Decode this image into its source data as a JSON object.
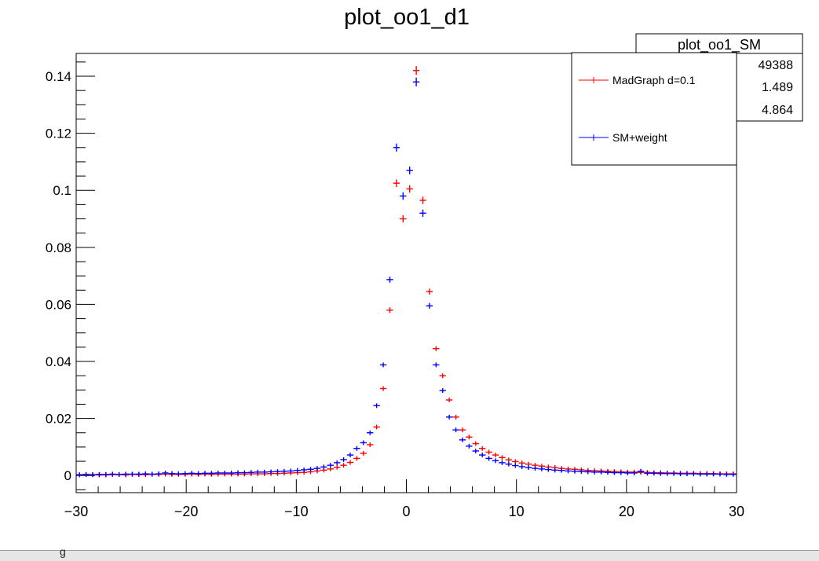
{
  "window": {
    "status_text": "g"
  },
  "chart_data": {
    "type": "scatter",
    "title": "plot_oo1_d1",
    "xlabel": "",
    "ylabel": "",
    "xlim": [
      -30,
      30
    ],
    "ylim": [
      -0.006,
      0.148
    ],
    "x_ticks": [
      -30,
      -20,
      -10,
      0,
      10,
      20,
      30
    ],
    "x_tick_labels": [
      "−30",
      "−20",
      "−10",
      "0",
      "10",
      "20",
      "30"
    ],
    "y_ticks": [
      0,
      0.02,
      0.04,
      0.06,
      0.08,
      0.1,
      0.12,
      0.14
    ],
    "y_tick_labels": [
      "0",
      "0.02",
      "0.04",
      "0.06",
      "0.08",
      "0.1",
      "0.12",
      "0.14"
    ],
    "grid": false,
    "bin_width": 0.6,
    "legend_position": "top-right",
    "stats_box": {
      "title": "plot_oo1_SM",
      "values": [
        "49388",
        "1.489",
        "4.864"
      ]
    },
    "series": [
      {
        "name": "MadGraph d=0.1",
        "color": "#ff0000",
        "marker": "cross",
        "x": [
          -29.7,
          -29.1,
          -28.5,
          -27.9,
          -27.3,
          -26.7,
          -26.1,
          -25.5,
          -24.9,
          -24.3,
          -23.7,
          -23.1,
          -22.5,
          -21.9,
          -21.3,
          -20.7,
          -20.1,
          -19.5,
          -18.9,
          -18.3,
          -17.7,
          -17.1,
          -16.5,
          -15.9,
          -15.3,
          -14.7,
          -14.1,
          -13.5,
          -12.9,
          -12.3,
          -11.7,
          -11.1,
          -10.5,
          -9.9,
          -9.3,
          -8.7,
          -8.1,
          -7.5,
          -6.9,
          -6.3,
          -5.7,
          -5.1,
          -4.5,
          -3.9,
          -3.3,
          -2.7,
          -2.1,
          -1.5,
          -0.9,
          -0.3,
          0.3,
          0.9,
          1.5,
          2.1,
          2.7,
          3.3,
          3.9,
          4.5,
          5.1,
          5.7,
          6.3,
          6.9,
          7.5,
          8.1,
          8.7,
          9.3,
          9.9,
          10.5,
          11.1,
          11.7,
          12.3,
          12.9,
          13.5,
          14.1,
          14.7,
          15.3,
          15.9,
          16.5,
          17.1,
          17.7,
          18.3,
          18.9,
          19.5,
          20.1,
          20.7,
          21.3,
          21.9,
          22.5,
          23.1,
          23.7,
          24.3,
          24.9,
          25.5,
          26.1,
          26.7,
          27.3,
          27.9,
          28.5,
          29.1,
          29.7
        ],
        "y": [
          0.0002,
          0.0003,
          0.0003,
          0.0002,
          0.0002,
          0.0003,
          0.0003,
          0.0002,
          0.0004,
          0.0003,
          0.0003,
          0.0004,
          0.0004,
          0.0005,
          0.0004,
          0.0004,
          0.0004,
          0.0005,
          0.0004,
          0.0005,
          0.0004,
          0.0005,
          0.0005,
          0.0005,
          0.0005,
          0.0005,
          0.0006,
          0.0006,
          0.0006,
          0.0007,
          0.0007,
          0.0008,
          0.0009,
          0.001,
          0.0011,
          0.0013,
          0.0016,
          0.0019,
          0.0023,
          0.0029,
          0.0036,
          0.0046,
          0.006,
          0.0078,
          0.0108,
          0.017,
          0.0305,
          0.058,
          0.1025,
          0.09,
          0.1005,
          0.142,
          0.0965,
          0.0645,
          0.0445,
          0.035,
          0.0265,
          0.0205,
          0.016,
          0.0135,
          0.0112,
          0.0095,
          0.0082,
          0.0072,
          0.0063,
          0.0055,
          0.0049,
          0.0044,
          0.004,
          0.0036,
          0.0033,
          0.003,
          0.0028,
          0.0025,
          0.0023,
          0.0022,
          0.002,
          0.0018,
          0.0017,
          0.0016,
          0.0015,
          0.0014,
          0.0013,
          0.0012,
          0.0012,
          0.0011,
          0.0011,
          0.001,
          0.001,
          0.0009,
          0.0009,
          0.0008,
          0.0008,
          0.0008,
          0.0007,
          0.0007,
          0.0007,
          0.0006,
          0.0006,
          0.0006
        ]
      },
      {
        "name": "SM+weight",
        "color": "#0000ff",
        "marker": "cross",
        "x": [
          -29.7,
          -29.1,
          -28.5,
          -27.9,
          -27.3,
          -26.7,
          -26.1,
          -25.5,
          -24.9,
          -24.3,
          -23.7,
          -23.1,
          -22.5,
          -21.9,
          -21.3,
          -20.7,
          -20.1,
          -19.5,
          -18.9,
          -18.3,
          -17.7,
          -17.1,
          -16.5,
          -15.9,
          -15.3,
          -14.7,
          -14.1,
          -13.5,
          -12.9,
          -12.3,
          -11.7,
          -11.1,
          -10.5,
          -9.9,
          -9.3,
          -8.7,
          -8.1,
          -7.5,
          -6.9,
          -6.3,
          -5.7,
          -5.1,
          -4.5,
          -3.9,
          -3.3,
          -2.7,
          -2.1,
          -1.5,
          -0.9,
          -0.3,
          0.3,
          0.9,
          1.5,
          2.1,
          2.7,
          3.3,
          3.9,
          4.5,
          5.1,
          5.7,
          6.3,
          6.9,
          7.5,
          8.1,
          8.7,
          9.3,
          9.9,
          10.5,
          11.1,
          11.7,
          12.3,
          12.9,
          13.5,
          14.1,
          14.7,
          15.3,
          15.9,
          16.5,
          17.1,
          17.7,
          18.3,
          18.9,
          19.5,
          20.1,
          20.7,
          21.3,
          21.9,
          22.5,
          23.1,
          23.7,
          24.3,
          24.9,
          25.5,
          26.1,
          26.7,
          27.3,
          27.9,
          28.5,
          29.1,
          29.7
        ],
        "y": [
          0.0003,
          0.0004,
          0.0003,
          0.0004,
          0.0004,
          0.0005,
          0.0004,
          0.0005,
          0.0005,
          0.0005,
          0.0006,
          0.0005,
          0.0006,
          0.0009,
          0.0007,
          0.0006,
          0.0007,
          0.0008,
          0.0007,
          0.0008,
          0.0008,
          0.0009,
          0.0009,
          0.0009,
          0.001,
          0.001,
          0.0011,
          0.0012,
          0.0012,
          0.0013,
          0.0014,
          0.0015,
          0.0016,
          0.0018,
          0.002,
          0.0022,
          0.0025,
          0.003,
          0.0036,
          0.0045,
          0.0056,
          0.0072,
          0.0095,
          0.0115,
          0.015,
          0.0245,
          0.0388,
          0.0687,
          0.115,
          0.098,
          0.107,
          0.138,
          0.092,
          0.0595,
          0.0388,
          0.0298,
          0.0205,
          0.016,
          0.0125,
          0.0103,
          0.0086,
          0.0072,
          0.006,
          0.0052,
          0.0045,
          0.004,
          0.0035,
          0.0031,
          0.0028,
          0.0025,
          0.0023,
          0.0021,
          0.0019,
          0.0018,
          0.0016,
          0.0015,
          0.0014,
          0.0013,
          0.0012,
          0.0012,
          0.0011,
          0.001,
          0.001,
          0.0009,
          0.0009,
          0.0015,
          0.0008,
          0.0008,
          0.0007,
          0.0007,
          0.0007,
          0.0006,
          0.0006,
          0.0006,
          0.0005,
          0.0005,
          0.0005,
          0.0005,
          0.0004,
          0.0004
        ]
      }
    ]
  }
}
